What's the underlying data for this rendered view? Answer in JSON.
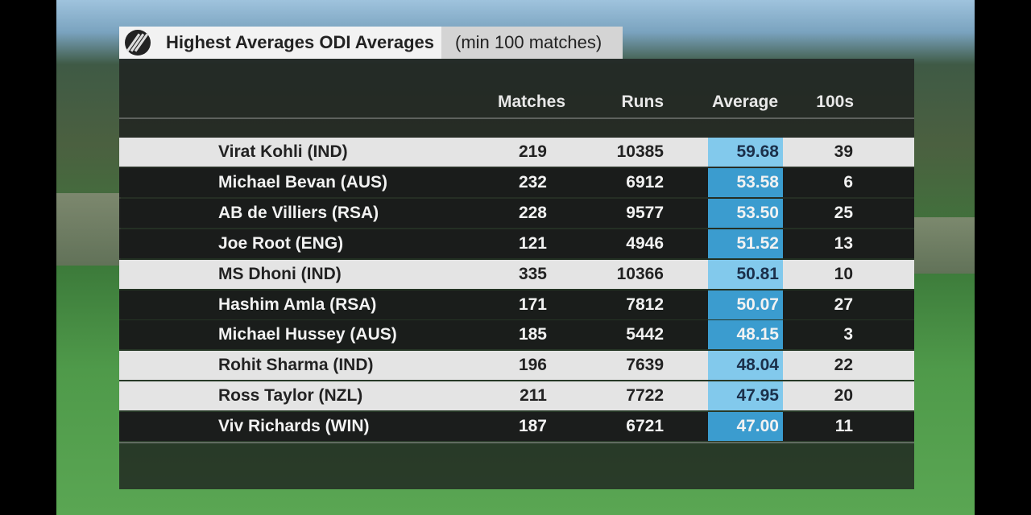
{
  "header": {
    "title": "Highest Averages ODI Averages",
    "subtitle": "(min 100 matches)"
  },
  "table": {
    "columns": [
      "Matches",
      "Runs",
      "Average",
      "100s"
    ],
    "rows": [
      [
        "Virat Kohli (IND)",
        "219",
        "10385",
        "59.68",
        "39"
      ],
      [
        "Michael Bevan (AUS)",
        "232",
        "6912",
        "53.58",
        "6"
      ],
      [
        "AB de Villiers (RSA)",
        "228",
        "9577",
        "53.50",
        "25"
      ],
      [
        "Joe Root (ENG)",
        "121",
        "4946",
        "51.52",
        "13"
      ],
      [
        "MS Dhoni (IND)",
        "335",
        "10366",
        "50.81",
        "10"
      ],
      [
        "Hashim Amla (RSA)",
        "171",
        "7812",
        "50.07",
        "27"
      ],
      [
        "Michael Hussey (AUS)",
        "185",
        "5442",
        "48.15",
        "3"
      ],
      [
        "Rohit Sharma (IND)",
        "196",
        "7639",
        "48.04",
        "22"
      ],
      [
        "Ross Taylor (NZL)",
        "211",
        "7722",
        "47.95",
        "20"
      ],
      [
        "Viv Richards (WIN)",
        "187",
        "6721",
        "47.00",
        "11"
      ]
    ]
  }
}
